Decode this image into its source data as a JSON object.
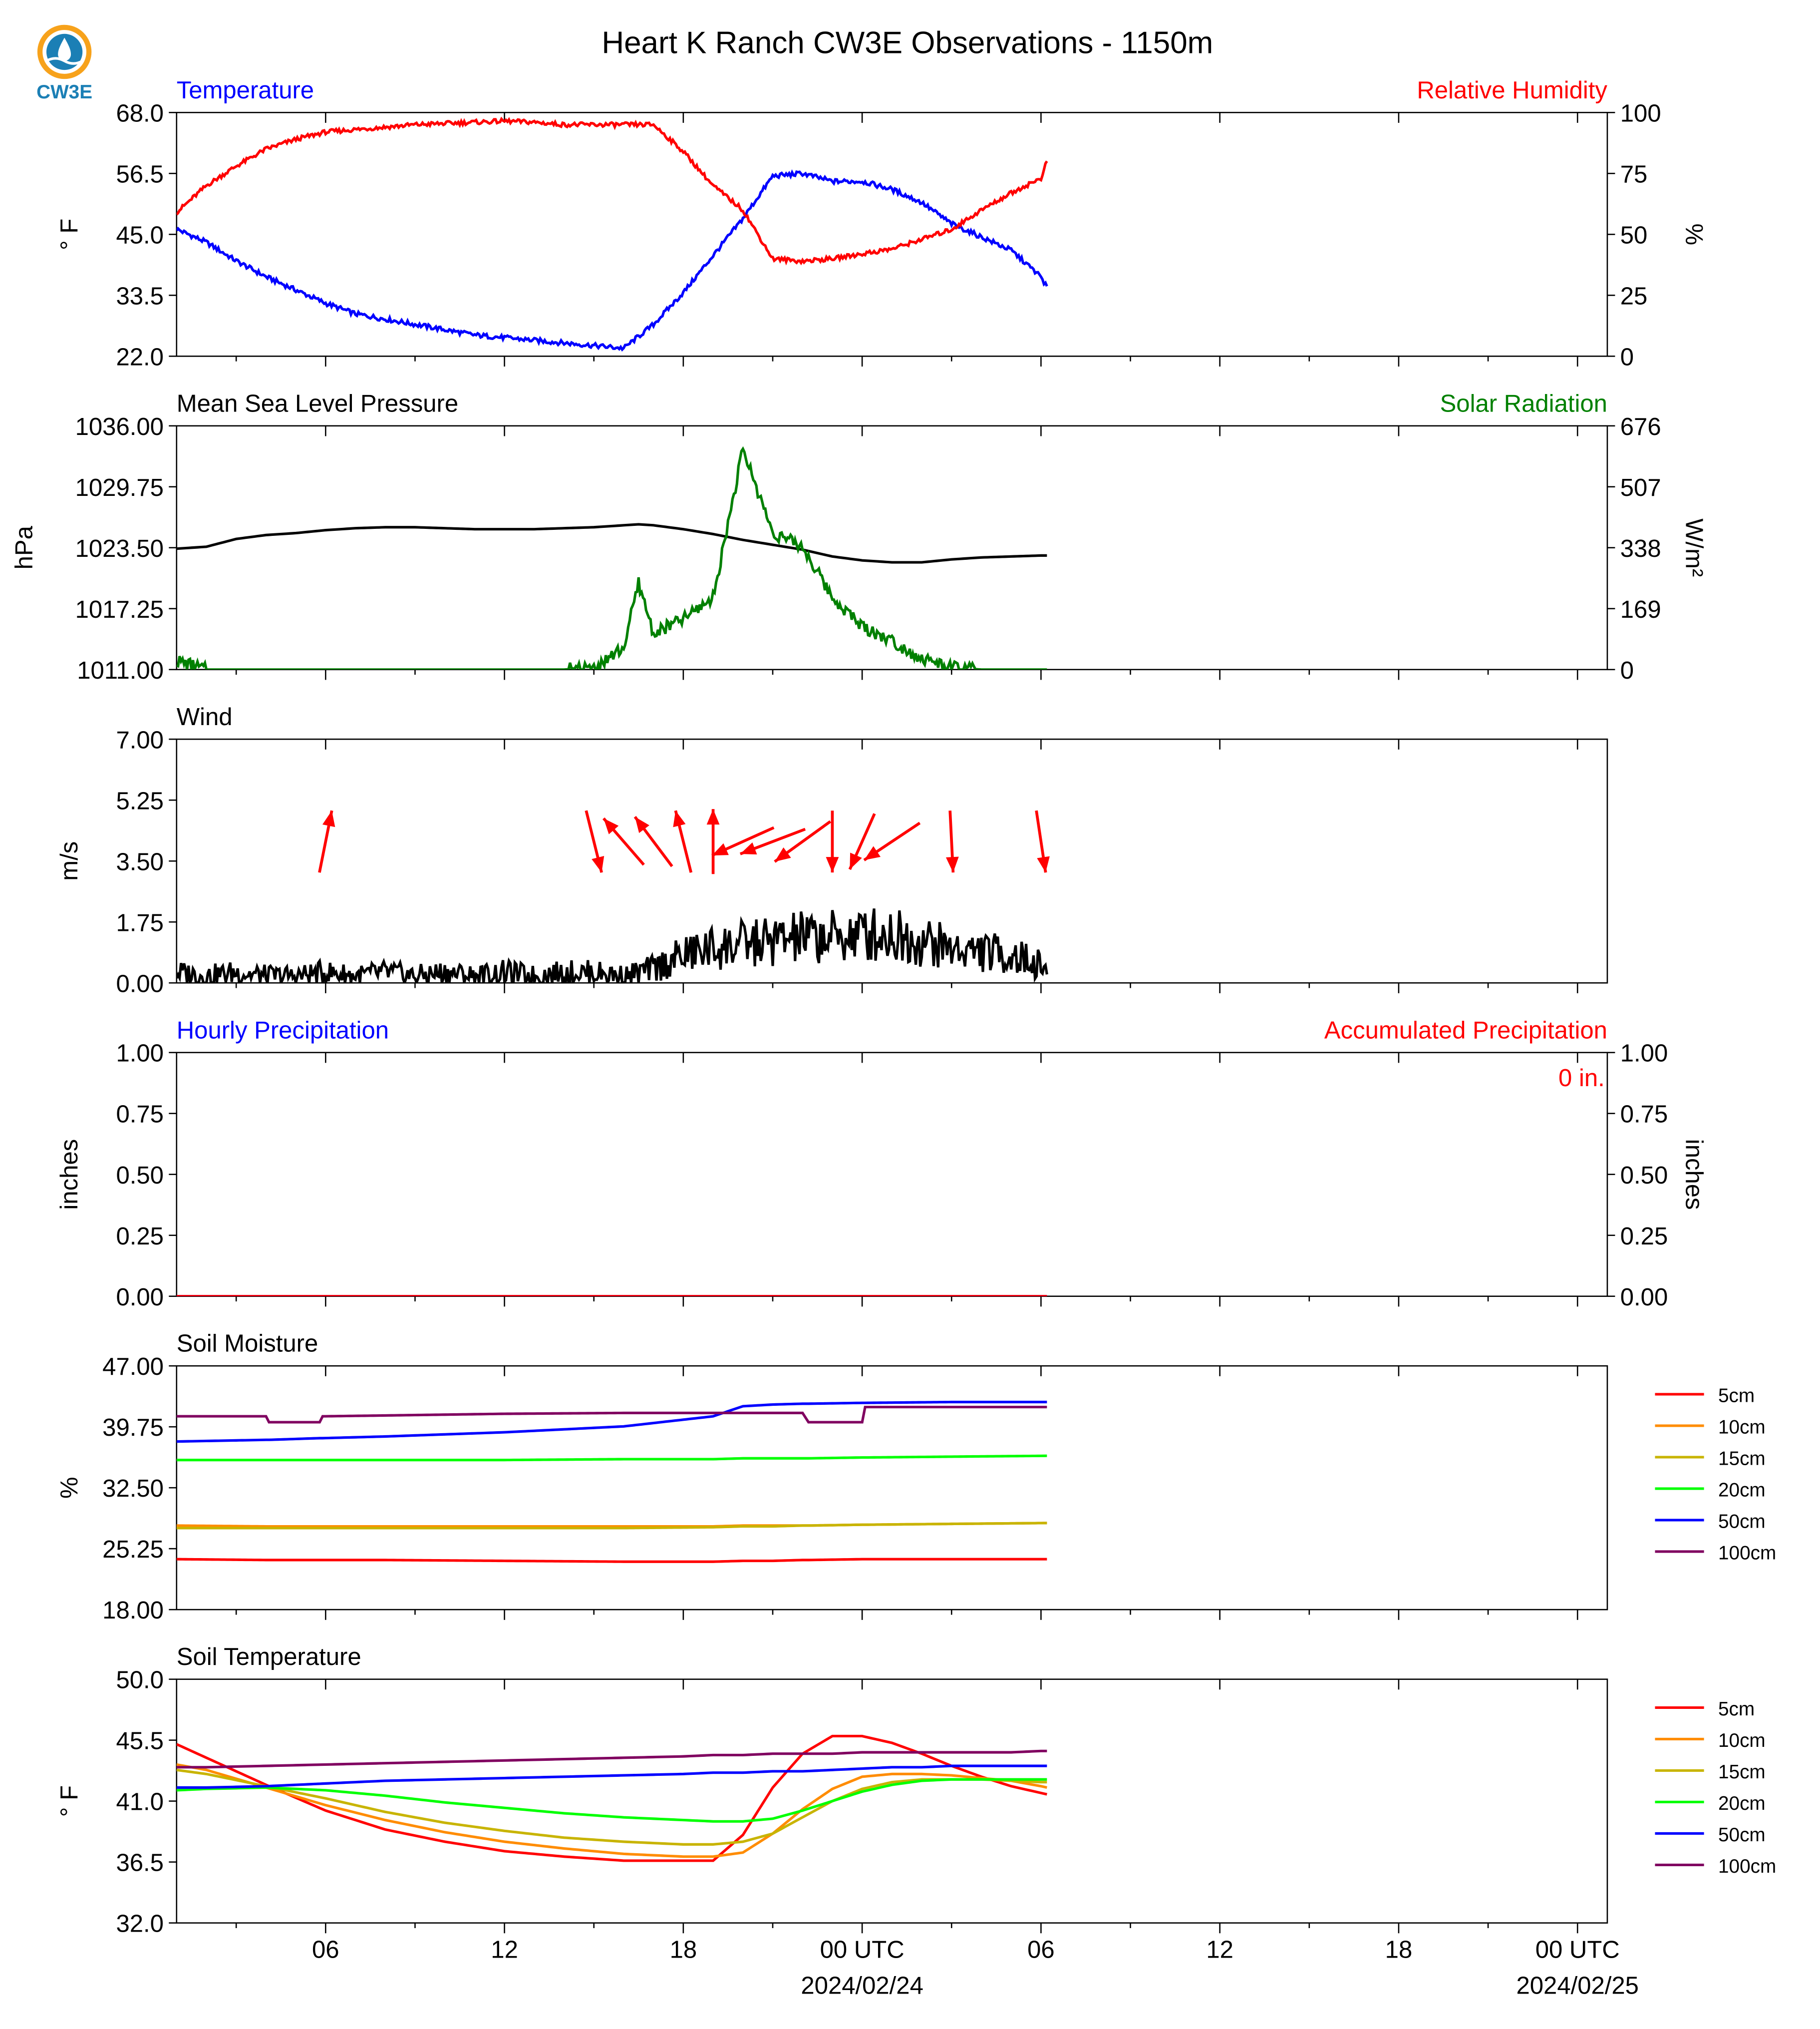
{
  "page": {
    "title": "Heart K Ranch CW3E Observations - 1150m",
    "logo_text": "CW3E"
  },
  "colors": {
    "temperature": "#0000ff",
    "humidity": "#ff0000",
    "pressure": "#000000",
    "solar": "#008000",
    "wind": "#000000",
    "wind_arrow": "#ff0000",
    "hourly_precip": "#0000ff",
    "accum_precip": "#ff0000",
    "logo_blue": "#1b7fb5",
    "logo_orange": "#f7a21b"
  },
  "time_axis": {
    "start_hour": 1,
    "end_hour": 49,
    "major_ticks": [
      6,
      12,
      18,
      24,
      30,
      36,
      42,
      48
    ],
    "minor_ticks": [
      3,
      9,
      15,
      21,
      27,
      33,
      39,
      45
    ],
    "tick_labels": [
      "06",
      "12",
      "18",
      "00 UTC",
      "06",
      "12",
      "18",
      "00 UTC"
    ],
    "date_labels": [
      {
        "at": 24,
        "text": "2024/02/24"
      },
      {
        "at": 48,
        "text": "2024/02/25"
      }
    ]
  },
  "chart_data": [
    {
      "type": "line",
      "panel": "temperature",
      "title_left": "Temperature",
      "title_right": "Relative Humidity",
      "ylabel_left": "° F",
      "ylabel_right": "%",
      "ylim_left": [
        22,
        68
      ],
      "ylim_right": [
        0,
        100
      ],
      "yticks_left": [
        "22.0",
        "33.5",
        "45.0",
        "56.5",
        "68.0"
      ],
      "yticks_right": [
        "0",
        "25",
        "50",
        "75",
        "100"
      ],
      "x": [
        1,
        2,
        3,
        4,
        5,
        6,
        7,
        8,
        9,
        10,
        11,
        12,
        13,
        14,
        15,
        16,
        17,
        18,
        19,
        20,
        21,
        22,
        23,
        24,
        25,
        26,
        27,
        28,
        29,
        30,
        30.2
      ],
      "series": [
        {
          "name": "Temperature",
          "axis": "left",
          "values": [
            46,
            43.5,
            40,
            37,
            34.5,
            32,
            30,
            29,
            28,
            27,
            26,
            25.5,
            25,
            24.5,
            24,
            23.5,
            28,
            34,
            41,
            48,
            56,
            56.5,
            55,
            55,
            53.5,
            51,
            47,
            44.5,
            42,
            37,
            35
          ]
        },
        {
          "name": "Relative Humidity",
          "axis": "right",
          "values": [
            59,
            70,
            78,
            85,
            89,
            92,
            93,
            94,
            95,
            95.5,
            96,
            96.5,
            96,
            95,
            95,
            95,
            95,
            84,
            70,
            60,
            40,
            39,
            40,
            42,
            44,
            48,
            52,
            60,
            67,
            73,
            80
          ]
        }
      ]
    },
    {
      "type": "line",
      "panel": "pressure",
      "title_left": "Mean Sea Level Pressure",
      "title_right": "Solar Radiation",
      "ylabel_left": "hPa",
      "ylabel_right": "W/m²",
      "ylim_left": [
        1011,
        1036
      ],
      "ylim_right": [
        0,
        676
      ],
      "yticks_left": [
        "1011.00",
        "1017.25",
        "1023.50",
        "1029.75",
        "1036.00"
      ],
      "yticks_right": [
        "0",
        "169",
        "338",
        "507",
        "676"
      ],
      "x": [
        1,
        2,
        3,
        4,
        5,
        6,
        7,
        8,
        9,
        10,
        11,
        12,
        13,
        14,
        15,
        16,
        16.5,
        17,
        18,
        19,
        20,
        21,
        22,
        23,
        24,
        25,
        26,
        27,
        28,
        29,
        30,
        30.2
      ],
      "series": [
        {
          "name": "MSLP",
          "axis": "left",
          "values": [
            1023.4,
            1023.6,
            1024.4,
            1024.8,
            1025.0,
            1025.3,
            1025.5,
            1025.6,
            1025.6,
            1025.5,
            1025.4,
            1025.4,
            1025.4,
            1025.5,
            1025.6,
            1025.8,
            1025.9,
            1025.8,
            1025.4,
            1024.9,
            1024.3,
            1023.8,
            1023.3,
            1022.6,
            1022.2,
            1022.0,
            1022.0,
            1022.3,
            1022.5,
            1022.6,
            1022.7,
            1022.7
          ]
        },
        {
          "name": "Solar Radiation",
          "axis": "right",
          "values": [
            25,
            0,
            0,
            0,
            0,
            0,
            0,
            0,
            0,
            0,
            0,
            0,
            0,
            0,
            5,
            60,
            240,
            100,
            140,
            200,
            610,
            380,
            340,
            200,
            120,
            80,
            30,
            5,
            0,
            0,
            0,
            0
          ]
        }
      ]
    },
    {
      "type": "line",
      "panel": "wind",
      "title_left": "Wind",
      "ylabel_left": "m/s",
      "ylim_left": [
        0,
        7
      ],
      "yticks_left": [
        "0.00",
        "1.75",
        "3.50",
        "5.25",
        "7.00"
      ],
      "x": [
        1,
        2,
        3,
        4,
        5,
        6,
        7,
        8,
        9,
        10,
        11,
        12,
        13,
        14,
        15,
        16,
        17,
        18,
        19,
        20,
        21,
        22,
        23,
        24,
        25,
        26,
        27,
        28,
        29,
        30,
        30.2
      ],
      "series": [
        {
          "name": "Wind Speed",
          "axis": "left",
          "values": [
            0.3,
            0.2,
            0.3,
            0.2,
            0.2,
            0.3,
            0.2,
            0.3,
            0.2,
            0.3,
            0.2,
            0.3,
            0.2,
            0.3,
            0.3,
            0.2,
            0.4,
            0.8,
            1.0,
            1.1,
            1.2,
            1.3,
            1.3,
            1.4,
            1.4,
            1.2,
            1.0,
            0.9,
            0.8,
            0.5,
            0.4
          ]
        }
      ],
      "wind_arrows": [
        {
          "hour": 6,
          "u": 0.4,
          "v": 2.0
        },
        {
          "hour": 15,
          "u": 0.5,
          "v": -2.0
        },
        {
          "hour": 16,
          "u": -1.3,
          "v": 1.5
        },
        {
          "hour": 17,
          "u": -1.2,
          "v": 1.6
        },
        {
          "hour": 18,
          "u": -0.5,
          "v": 2.0
        },
        {
          "hour": 19,
          "u": 0,
          "v": 2.1
        },
        {
          "hour": 20,
          "u": -2.0,
          "v": -0.9
        },
        {
          "hour": 21,
          "u": -2.1,
          "v": -0.8
        },
        {
          "hour": 22,
          "u": -1.8,
          "v": -1.3
        },
        {
          "hour": 23,
          "u": 0,
          "v": -2.0
        },
        {
          "hour": 24,
          "u": -0.8,
          "v": -1.8
        },
        {
          "hour": 25,
          "u": -1.8,
          "v": -1.2
        },
        {
          "hour": 27,
          "u": 0.1,
          "v": -2.0
        },
        {
          "hour": 30,
          "u": 0.3,
          "v": -2.0
        }
      ]
    },
    {
      "type": "line",
      "panel": "precipitation",
      "title_left": "Hourly Precipitation",
      "title_right": "Accumulated Precipitation",
      "ylabel_left": "inches",
      "ylabel_right": "inches",
      "ylim_left": [
        0,
        1
      ],
      "ylim_right": [
        0,
        1
      ],
      "yticks_left": [
        "0.00",
        "0.25",
        "0.50",
        "0.75",
        "1.00"
      ],
      "yticks_right": [
        "0.00",
        "0.25",
        "0.50",
        "0.75",
        "1.00"
      ],
      "accum_label": "0 in.",
      "x": [
        1,
        30.2
      ],
      "series": [
        {
          "name": "Hourly",
          "axis": "left",
          "values": [
            0,
            0
          ]
        },
        {
          "name": "Accumulated",
          "axis": "right",
          "values": [
            0,
            0
          ]
        }
      ]
    },
    {
      "type": "line",
      "panel": "soil_moisture",
      "title_left": "Soil Moisture",
      "ylabel_left": "%",
      "ylim_left": [
        18,
        47
      ],
      "yticks_left": [
        "18.00",
        "25.25",
        "32.50",
        "39.75",
        "47.00"
      ],
      "x": [
        1,
        4,
        4.1,
        5.8,
        5.9,
        8,
        12,
        16,
        19,
        20,
        21,
        22,
        22.2,
        24,
        24.1,
        27,
        30.2
      ],
      "series": [
        {
          "name": "5cm",
          "color": "#ff0000",
          "values": [
            24.0,
            23.9,
            23.9,
            23.9,
            23.9,
            23.9,
            23.8,
            23.7,
            23.7,
            23.8,
            23.8,
            23.9,
            23.9,
            24.0,
            24.0,
            24.0,
            24.0
          ]
        },
        {
          "name": "10cm",
          "color": "#ff8c00",
          "values": [
            28.0,
            27.9,
            27.9,
            27.9,
            27.9,
            27.9,
            27.9,
            27.9,
            27.9,
            28.0,
            28.0,
            28.0,
            28.0,
            28.1,
            28.1,
            28.2,
            28.3
          ]
        },
        {
          "name": "15cm",
          "color": "#c8b400",
          "values": [
            27.7,
            27.7,
            27.7,
            27.7,
            27.7,
            27.7,
            27.7,
            27.7,
            27.8,
            27.9,
            27.9,
            28.0,
            28.0,
            28.1,
            28.1,
            28.2,
            28.3
          ]
        },
        {
          "name": "20cm",
          "color": "#00ff00",
          "values": [
            35.8,
            35.8,
            35.8,
            35.8,
            35.8,
            35.8,
            35.8,
            35.9,
            35.9,
            36.0,
            36.0,
            36.0,
            36.0,
            36.1,
            36.1,
            36.2,
            36.3
          ]
        },
        {
          "name": "50cm",
          "color": "#0000ff",
          "values": [
            38.0,
            38.2,
            38.2,
            38.4,
            38.4,
            38.6,
            39.1,
            39.8,
            41.0,
            42.2,
            42.4,
            42.5,
            42.5,
            42.6,
            42.6,
            42.7,
            42.7
          ]
        },
        {
          "name": "100cm",
          "color": "#800060",
          "values": [
            41.0,
            41.0,
            40.3,
            40.3,
            41.0,
            41.1,
            41.3,
            41.4,
            41.4,
            41.4,
            41.4,
            41.4,
            40.3,
            40.3,
            42.1,
            42.1,
            42.1
          ]
        }
      ]
    },
    {
      "type": "line",
      "panel": "soil_temperature",
      "title_left": "Soil Temperature",
      "ylabel_left": "° F",
      "ylim_left": [
        32,
        50
      ],
      "yticks_left": [
        "32.0",
        "36.5",
        "41.0",
        "45.5",
        "50.0"
      ],
      "x": [
        1,
        2,
        4,
        6,
        8,
        10,
        12,
        14,
        16,
        18,
        19,
        20,
        21,
        22,
        23,
        24,
        25,
        26,
        27,
        28,
        29,
        30,
        30.2
      ],
      "series": [
        {
          "name": "5cm",
          "color": "#ff0000",
          "values": [
            45.2,
            44.2,
            42.2,
            40.3,
            38.9,
            38.0,
            37.3,
            36.9,
            36.6,
            36.6,
            36.6,
            38.5,
            42.0,
            44.5,
            45.8,
            45.8,
            45.3,
            44.5,
            43.6,
            42.8,
            42.1,
            41.6,
            41.5
          ]
        },
        {
          "name": "10cm",
          "color": "#ff8c00",
          "values": [
            43.7,
            43.3,
            42.0,
            40.7,
            39.6,
            38.7,
            38.0,
            37.5,
            37.1,
            36.9,
            36.9,
            37.2,
            38.6,
            40.4,
            41.9,
            42.8,
            43.0,
            43.0,
            42.9,
            42.7,
            42.5,
            42.1,
            42.0
          ]
        },
        {
          "name": "15cm",
          "color": "#c8b400",
          "values": [
            43.3,
            43.0,
            42.1,
            41.2,
            40.2,
            39.4,
            38.8,
            38.3,
            38.0,
            37.8,
            37.8,
            38.0,
            38.6,
            39.8,
            41.0,
            41.9,
            42.4,
            42.6,
            42.6,
            42.6,
            42.5,
            42.4,
            42.4
          ]
        },
        {
          "name": "20cm",
          "color": "#00ff00",
          "values": [
            41.8,
            41.9,
            42.0,
            41.8,
            41.4,
            40.9,
            40.5,
            40.1,
            39.8,
            39.6,
            39.5,
            39.5,
            39.7,
            40.3,
            41.0,
            41.7,
            42.2,
            42.5,
            42.6,
            42.6,
            42.6,
            42.6,
            42.6
          ]
        },
        {
          "name": "50cm",
          "color": "#0000ff",
          "values": [
            42.0,
            42.0,
            42.1,
            42.3,
            42.5,
            42.6,
            42.7,
            42.8,
            42.9,
            43.0,
            43.1,
            43.1,
            43.2,
            43.2,
            43.3,
            43.4,
            43.5,
            43.5,
            43.6,
            43.6,
            43.6,
            43.6,
            43.6
          ]
        },
        {
          "name": "100cm",
          "color": "#800060",
          "values": [
            43.5,
            43.5,
            43.6,
            43.7,
            43.8,
            43.9,
            44.0,
            44.1,
            44.2,
            44.3,
            44.4,
            44.4,
            44.5,
            44.5,
            44.5,
            44.6,
            44.6,
            44.6,
            44.6,
            44.6,
            44.6,
            44.7,
            44.7
          ]
        }
      ]
    }
  ]
}
